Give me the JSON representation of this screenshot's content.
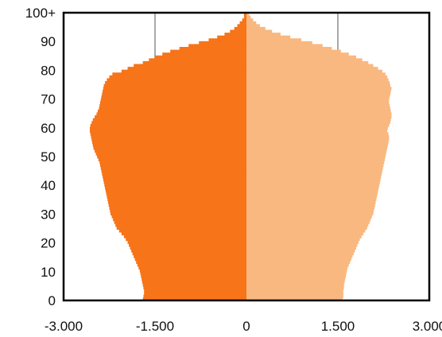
{
  "chart_data": {
    "type": "bar",
    "orientation": "horizontal",
    "title": "",
    "xlabel": "",
    "ylabel": "",
    "xlim": [
      -3000,
      3000
    ],
    "ylim": [
      0,
      100
    ],
    "x_ticks": [
      {
        "value": -3000,
        "label": "-3.000"
      },
      {
        "value": -1500,
        "label": "-1.500"
      },
      {
        "value": 0,
        "label": "0"
      },
      {
        "value": 1500,
        "label": "1.500"
      },
      {
        "value": 3000,
        "label": "3.000"
      }
    ],
    "y_ticks": [
      {
        "value": 0,
        "label": "0"
      },
      {
        "value": 10,
        "label": "10"
      },
      {
        "value": 20,
        "label": "20"
      },
      {
        "value": 30,
        "label": "30"
      },
      {
        "value": 40,
        "label": "40"
      },
      {
        "value": 50,
        "label": "50"
      },
      {
        "value": 60,
        "label": "60"
      },
      {
        "value": 70,
        "label": "70"
      },
      {
        "value": 80,
        "label": "80"
      },
      {
        "value": 90,
        "label": "90"
      },
      {
        "value": 100,
        "label": "100+"
      }
    ],
    "gridlines_x": [
      -1500,
      1500
    ],
    "legend": "none",
    "series": [
      {
        "color": "#f77418",
        "side": "left",
        "values": [
          -1700,
          -1690,
          -1680,
          -1680,
          -1690,
          -1700,
          -1710,
          -1720,
          -1730,
          -1740,
          -1750,
          -1770,
          -1790,
          -1810,
          -1830,
          -1850,
          -1870,
          -1890,
          -1910,
          -1930,
          -1950,
          -1980,
          -2010,
          -2050,
          -2090,
          -2130,
          -2150,
          -2170,
          -2190,
          -2210,
          -2230,
          -2240,
          -2250,
          -2260,
          -2270,
          -2280,
          -2290,
          -2300,
          -2310,
          -2320,
          -2330,
          -2340,
          -2350,
          -2360,
          -2370,
          -2380,
          -2390,
          -2400,
          -2410,
          -2430,
          -2450,
          -2470,
          -2490,
          -2510,
          -2520,
          -2530,
          -2540,
          -2550,
          -2560,
          -2570,
          -2570,
          -2560,
          -2540,
          -2520,
          -2490,
          -2460,
          -2440,
          -2420,
          -2410,
          -2400,
          -2390,
          -2380,
          -2370,
          -2360,
          -2350,
          -2340,
          -2320,
          -2290,
          -2250,
          -2200,
          -2050,
          -1950,
          -1850,
          -1700,
          -1600,
          -1500,
          -1380,
          -1250,
          -1100,
          -950,
          -780,
          -620,
          -480,
          -360,
          -270,
          -200,
          -150,
          -110,
          -70,
          -40,
          -40
        ]
      },
      {
        "color": "#f9b880",
        "side": "right",
        "values": [
          1580,
          1590,
          1590,
          1590,
          1600,
          1600,
          1610,
          1620,
          1630,
          1640,
          1650,
          1660,
          1680,
          1700,
          1720,
          1740,
          1760,
          1780,
          1800,
          1820,
          1840,
          1860,
          1890,
          1920,
          1950,
          1980,
          2000,
          2020,
          2040,
          2060,
          2080,
          2090,
          2100,
          2110,
          2120,
          2130,
          2140,
          2150,
          2160,
          2170,
          2180,
          2190,
          2200,
          2210,
          2220,
          2230,
          2240,
          2250,
          2260,
          2270,
          2280,
          2290,
          2300,
          2310,
          2320,
          2330,
          2340,
          2340,
          2330,
          2310,
          2320,
          2340,
          2360,
          2370,
          2380,
          2380,
          2370,
          2360,
          2350,
          2340,
          2340,
          2350,
          2360,
          2370,
          2380,
          2360,
          2350,
          2330,
          2310,
          2280,
          2230,
          2160,
          2080,
          2000,
          1900,
          1800,
          1680,
          1550,
          1400,
          1250,
          1080,
          900,
          720,
          560,
          420,
          310,
          220,
          160,
          110,
          70,
          40
        ]
      }
    ]
  }
}
